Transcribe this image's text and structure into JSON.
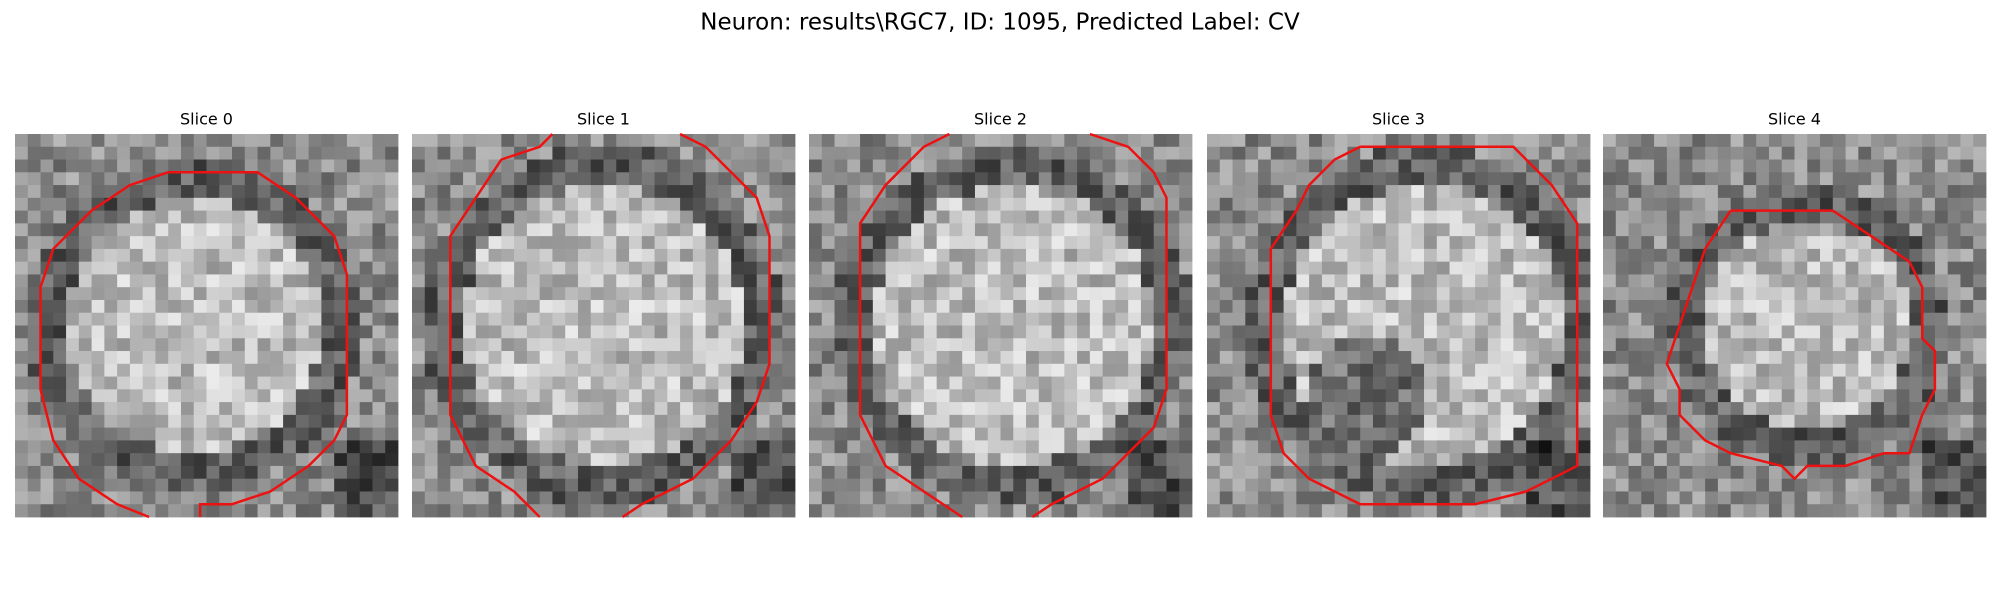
{
  "title": "Neuron: results\\RGC7, ID: 1095, Predicted Label: CV",
  "panels": [
    {
      "title": "Slice 0"
    },
    {
      "title": "Slice 1"
    },
    {
      "title": "Slice 2"
    },
    {
      "title": "Slice 3"
    },
    {
      "title": "Slice 4"
    }
  ]
}
